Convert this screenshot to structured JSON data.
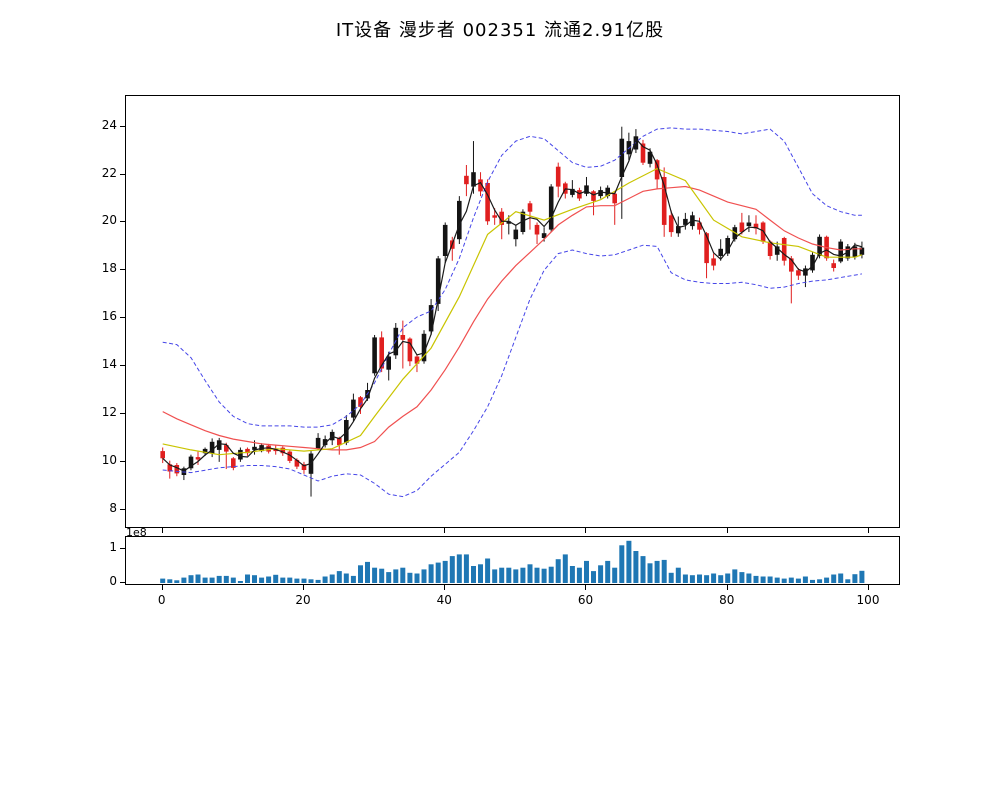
{
  "title": "IT设备 漫步者 002351 流通2.91亿股",
  "chart_data": {
    "type": "candlestick",
    "title": "IT设备 漫步者 002351 流通2.91亿股",
    "legend_position": "none",
    "grid": false,
    "price_axis": {
      "ticks": [
        8,
        10,
        12,
        14,
        16,
        18,
        20,
        22,
        24
      ],
      "min": 8,
      "max": 24.7
    },
    "x_axis": {
      "ticks": [
        0,
        20,
        40,
        60,
        80,
        100
      ],
      "min": -5.3,
      "max": 104.4
    },
    "volume_axis": {
      "ticks": [
        0,
        1
      ],
      "scale_label": "1e8",
      "max": 1.38
    },
    "colors": {
      "up_candle": "#141414",
      "down_candle": "#e01f1f",
      "ma3_black": "#1a1a1a",
      "ma10_yellow": "#c9c400",
      "ma20_red": "#f05050",
      "bollinger_blue": "#4646e8",
      "volume_bar": "#1f77b4",
      "axis": "#000000",
      "background": "#ffffff"
    },
    "ohlc": [
      [
        10.45,
        10.6,
        9.95,
        10.15
      ],
      [
        9.9,
        10.05,
        9.3,
        9.6
      ],
      [
        9.87,
        9.95,
        9.4,
        9.52
      ],
      [
        9.45,
        9.8,
        9.24,
        9.73
      ],
      [
        9.73,
        10.3,
        9.65,
        10.22
      ],
      [
        10.2,
        10.43,
        9.87,
        10.1
      ],
      [
        10.36,
        10.6,
        10.25,
        10.54
      ],
      [
        10.35,
        10.98,
        10.2,
        10.84
      ],
      [
        10.5,
        11.0,
        10.0,
        10.9
      ],
      [
        10.7,
        10.8,
        9.7,
        10.43
      ],
      [
        10.15,
        10.2,
        9.65,
        9.75
      ],
      [
        10.1,
        10.6,
        10.0,
        10.5
      ],
      [
        10.54,
        10.6,
        10.25,
        10.36
      ],
      [
        10.5,
        10.9,
        10.3,
        10.63
      ],
      [
        10.45,
        10.78,
        10.4,
        10.7
      ],
      [
        10.68,
        10.75,
        10.35,
        10.43
      ],
      [
        10.56,
        10.7,
        10.3,
        10.45
      ],
      [
        10.59,
        10.65,
        10.25,
        10.36
      ],
      [
        10.43,
        10.5,
        9.95,
        10.04
      ],
      [
        10.08,
        10.15,
        9.7,
        9.8
      ],
      [
        9.9,
        10.0,
        9.5,
        9.66
      ],
      [
        9.5,
        10.45,
        8.55,
        10.35
      ],
      [
        10.55,
        11.2,
        10.5,
        11.0
      ],
      [
        10.7,
        11.1,
        10.6,
        10.95
      ],
      [
        10.9,
        11.35,
        10.7,
        11.25
      ],
      [
        11.0,
        11.05,
        10.3,
        10.7
      ],
      [
        10.8,
        11.95,
        10.7,
        11.75
      ],
      [
        11.85,
        12.85,
        11.7,
        12.6
      ],
      [
        12.7,
        12.75,
        12.0,
        12.3
      ],
      [
        12.65,
        13.3,
        12.55,
        13.0
      ],
      [
        13.7,
        15.3,
        13.6,
        15.2
      ],
      [
        15.2,
        15.45,
        13.75,
        13.9
      ],
      [
        13.85,
        14.6,
        13.4,
        14.4
      ],
      [
        14.45,
        15.8,
        14.3,
        15.6
      ],
      [
        15.3,
        15.9,
        13.9,
        15.1
      ],
      [
        15.15,
        15.2,
        14.0,
        14.2
      ],
      [
        14.4,
        14.5,
        13.75,
        14.1
      ],
      [
        14.2,
        15.5,
        14.1,
        15.35
      ],
      [
        15.45,
        16.8,
        15.3,
        16.55
      ],
      [
        16.6,
        18.6,
        16.3,
        18.5
      ],
      [
        18.6,
        20.0,
        18.3,
        19.9
      ],
      [
        19.25,
        19.4,
        18.4,
        18.9
      ],
      [
        19.3,
        21.1,
        19.1,
        20.9
      ],
      [
        21.95,
        22.4,
        21.1,
        21.6
      ],
      [
        21.5,
        23.4,
        21.2,
        22.1
      ],
      [
        21.8,
        22.1,
        21.1,
        21.3
      ],
      [
        21.65,
        21.8,
        19.9,
        20.05
      ],
      [
        20.3,
        20.6,
        19.9,
        20.2
      ],
      [
        20.45,
        20.6,
        19.3,
        19.9
      ],
      [
        19.95,
        20.3,
        19.5,
        20.05
      ],
      [
        19.3,
        19.9,
        19.0,
        19.7
      ],
      [
        19.6,
        20.55,
        19.5,
        20.45
      ],
      [
        20.8,
        20.9,
        19.7,
        20.45
      ],
      [
        19.9,
        20.0,
        19.1,
        19.5
      ],
      [
        19.35,
        19.8,
        19.2,
        19.55
      ],
      [
        19.7,
        21.6,
        19.6,
        21.5
      ],
      [
        22.33,
        22.5,
        21.05,
        21.5
      ],
      [
        21.63,
        21.7,
        21.0,
        21.2
      ],
      [
        21.15,
        21.77,
        21.05,
        21.4
      ],
      [
        21.35,
        21.45,
        20.9,
        21.0
      ],
      [
        21.2,
        21.9,
        21.1,
        21.55
      ],
      [
        21.3,
        21.35,
        20.3,
        20.9
      ],
      [
        21.1,
        21.5,
        21.0,
        21.35
      ],
      [
        21.1,
        21.55,
        21.0,
        21.45
      ],
      [
        21.2,
        21.3,
        19.9,
        20.8
      ],
      [
        21.9,
        24.0,
        20.15,
        23.5
      ],
      [
        22.85,
        23.75,
        22.6,
        23.4
      ],
      [
        23.05,
        23.9,
        22.9,
        23.6
      ],
      [
        23.3,
        23.45,
        22.4,
        22.5
      ],
      [
        22.45,
        23.1,
        22.3,
        22.95
      ],
      [
        22.6,
        22.65,
        21.4,
        21.8
      ],
      [
        21.9,
        22.3,
        19.4,
        19.9
      ],
      [
        20.3,
        20.5,
        19.4,
        19.6
      ],
      [
        19.55,
        20.25,
        19.4,
        19.85
      ],
      [
        19.9,
        20.4,
        19.7,
        20.15
      ],
      [
        19.85,
        20.45,
        19.7,
        20.3
      ],
      [
        20.0,
        20.2,
        19.5,
        19.7
      ],
      [
        19.55,
        19.6,
        17.67,
        18.3
      ],
      [
        18.5,
        18.7,
        18.0,
        18.2
      ],
      [
        18.6,
        19.3,
        18.4,
        18.9
      ],
      [
        18.7,
        19.45,
        18.6,
        19.35
      ],
      [
        19.3,
        19.9,
        19.2,
        19.8
      ],
      [
        20.0,
        20.4,
        19.5,
        19.6
      ],
      [
        19.85,
        20.3,
        19.6,
        20.0
      ],
      [
        19.95,
        20.3,
        19.5,
        19.75
      ],
      [
        20.0,
        20.05,
        19.1,
        19.2
      ],
      [
        19.2,
        19.25,
        18.45,
        18.6
      ],
      [
        18.65,
        19.2,
        18.4,
        19.0
      ],
      [
        19.35,
        19.4,
        18.2,
        18.4
      ],
      [
        18.5,
        18.6,
        16.62,
        17.95
      ],
      [
        18.0,
        18.1,
        17.6,
        17.78
      ],
      [
        17.78,
        18.2,
        17.3,
        18.08
      ],
      [
        18.0,
        18.75,
        17.9,
        18.65
      ],
      [
        18.6,
        19.5,
        18.5,
        19.4
      ],
      [
        19.4,
        19.45,
        18.4,
        18.5
      ],
      [
        18.3,
        18.45,
        17.95,
        18.1
      ],
      [
        18.37,
        19.3,
        18.3,
        19.2
      ],
      [
        18.5,
        19.1,
        18.4,
        19.0
      ],
      [
        18.55,
        19.15,
        18.45,
        19.0
      ],
      [
        18.65,
        19.2,
        18.5,
        18.95
      ]
    ],
    "volume_1e8": [
      0.13,
      0.11,
      0.08,
      0.16,
      0.23,
      0.25,
      0.16,
      0.16,
      0.21,
      0.21,
      0.16,
      0.06,
      0.25,
      0.23,
      0.16,
      0.19,
      0.24,
      0.16,
      0.16,
      0.13,
      0.13,
      0.11,
      0.09,
      0.19,
      0.25,
      0.35,
      0.28,
      0.21,
      0.52,
      0.62,
      0.45,
      0.42,
      0.32,
      0.4,
      0.45,
      0.3,
      0.28,
      0.4,
      0.55,
      0.6,
      0.65,
      0.79,
      0.84,
      0.84,
      0.5,
      0.55,
      0.72,
      0.4,
      0.45,
      0.45,
      0.4,
      0.45,
      0.55,
      0.45,
      0.42,
      0.48,
      0.7,
      0.84,
      0.5,
      0.45,
      0.65,
      0.35,
      0.52,
      0.65,
      0.45,
      1.11,
      1.24,
      0.94,
      0.79,
      0.58,
      0.65,
      0.68,
      0.3,
      0.45,
      0.25,
      0.23,
      0.25,
      0.23,
      0.28,
      0.23,
      0.28,
      0.4,
      0.32,
      0.28,
      0.21,
      0.19,
      0.19,
      0.16,
      0.13,
      0.16,
      0.13,
      0.19,
      0.09,
      0.11,
      0.16,
      0.25,
      0.28,
      0.11,
      0.26,
      0.36
    ],
    "indicators": {
      "bollinger_upper": [
        [
          0,
          15.0
        ],
        [
          2,
          14.9
        ],
        [
          4,
          14.35
        ],
        [
          6,
          13.4
        ],
        [
          8,
          12.5
        ],
        [
          10,
          11.9
        ],
        [
          12,
          11.6
        ],
        [
          14,
          11.5
        ],
        [
          16,
          11.5
        ],
        [
          18,
          11.5
        ],
        [
          20,
          11.45
        ],
        [
          22,
          11.45
        ],
        [
          24,
          11.55
        ],
        [
          26,
          11.9
        ],
        [
          28,
          12.4
        ],
        [
          30,
          13.3
        ],
        [
          32,
          14.5
        ],
        [
          34,
          15.6
        ],
        [
          36,
          16.05
        ],
        [
          38,
          16.3
        ],
        [
          40,
          17.2
        ],
        [
          42,
          18.5
        ],
        [
          44,
          20.2
        ],
        [
          46,
          21.7
        ],
        [
          48,
          22.8
        ],
        [
          50,
          23.4
        ],
        [
          52,
          23.6
        ],
        [
          54,
          23.5
        ],
        [
          56,
          23.0
        ],
        [
          58,
          22.5
        ],
        [
          60,
          22.3
        ],
        [
          62,
          22.35
        ],
        [
          64,
          22.6
        ],
        [
          66,
          23.1
        ],
        [
          68,
          23.6
        ],
        [
          70,
          23.9
        ],
        [
          72,
          23.95
        ],
        [
          74,
          23.9
        ],
        [
          76,
          23.9
        ],
        [
          78,
          23.85
        ],
        [
          80,
          23.8
        ],
        [
          82,
          23.7
        ],
        [
          84,
          23.8
        ],
        [
          86,
          23.9
        ],
        [
          88,
          23.4
        ],
        [
          90,
          22.3
        ],
        [
          92,
          21.2
        ],
        [
          94,
          20.7
        ],
        [
          96,
          20.45
        ],
        [
          98,
          20.3
        ],
        [
          99,
          20.3
        ]
      ],
      "bollinger_lower": [
        [
          0,
          9.66
        ],
        [
          2,
          9.6
        ],
        [
          4,
          9.55
        ],
        [
          6,
          9.65
        ],
        [
          8,
          9.75
        ],
        [
          10,
          9.8
        ],
        [
          12,
          9.85
        ],
        [
          14,
          9.85
        ],
        [
          16,
          9.8
        ],
        [
          18,
          9.7
        ],
        [
          20,
          9.45
        ],
        [
          22,
          9.2
        ],
        [
          24,
          9.4
        ],
        [
          26,
          9.5
        ],
        [
          28,
          9.45
        ],
        [
          30,
          9.1
        ],
        [
          32,
          8.65
        ],
        [
          34,
          8.55
        ],
        [
          36,
          8.8
        ],
        [
          38,
          9.4
        ],
        [
          40,
          9.9
        ],
        [
          42,
          10.4
        ],
        [
          44,
          11.3
        ],
        [
          46,
          12.3
        ],
        [
          48,
          13.6
        ],
        [
          50,
          15.2
        ],
        [
          52,
          16.8
        ],
        [
          54,
          18.0
        ],
        [
          56,
          18.7
        ],
        [
          58,
          18.85
        ],
        [
          60,
          18.7
        ],
        [
          62,
          18.6
        ],
        [
          64,
          18.65
        ],
        [
          66,
          18.85
        ],
        [
          68,
          19.05
        ],
        [
          70,
          19.0
        ],
        [
          72,
          17.9
        ],
        [
          74,
          17.6
        ],
        [
          76,
          17.5
        ],
        [
          78,
          17.45
        ],
        [
          80,
          17.45
        ],
        [
          82,
          17.5
        ],
        [
          84,
          17.4
        ],
        [
          86,
          17.25
        ],
        [
          88,
          17.3
        ],
        [
          90,
          17.45
        ],
        [
          92,
          17.55
        ],
        [
          94,
          17.6
        ],
        [
          96,
          17.7
        ],
        [
          98,
          17.8
        ],
        [
          99,
          17.85
        ]
      ],
      "ma20_red": [
        [
          0,
          12.1
        ],
        [
          2,
          11.8
        ],
        [
          4,
          11.55
        ],
        [
          6,
          11.3
        ],
        [
          8,
          11.1
        ],
        [
          10,
          10.95
        ],
        [
          12,
          10.85
        ],
        [
          14,
          10.75
        ],
        [
          16,
          10.7
        ],
        [
          18,
          10.65
        ],
        [
          20,
          10.6
        ],
        [
          22,
          10.55
        ],
        [
          24,
          10.5
        ],
        [
          26,
          10.5
        ],
        [
          28,
          10.6
        ],
        [
          30,
          10.85
        ],
        [
          32,
          11.45
        ],
        [
          34,
          11.9
        ],
        [
          36,
          12.3
        ],
        [
          38,
          13.0
        ],
        [
          40,
          13.85
        ],
        [
          42,
          14.8
        ],
        [
          44,
          15.85
        ],
        [
          46,
          16.8
        ],
        [
          48,
          17.55
        ],
        [
          50,
          18.2
        ],
        [
          52,
          18.75
        ],
        [
          54,
          19.3
        ],
        [
          56,
          19.9
        ],
        [
          58,
          20.3
        ],
        [
          60,
          20.65
        ],
        [
          62,
          20.7
        ],
        [
          64,
          20.7
        ],
        [
          66,
          21.0
        ],
        [
          68,
          21.3
        ],
        [
          70,
          21.4
        ],
        [
          72,
          21.45
        ],
        [
          74,
          21.5
        ],
        [
          76,
          21.35
        ],
        [
          78,
          21.1
        ],
        [
          80,
          20.85
        ],
        [
          82,
          20.7
        ],
        [
          84,
          20.55
        ],
        [
          86,
          20.1
        ],
        [
          88,
          19.65
        ],
        [
          90,
          19.35
        ],
        [
          92,
          19.1
        ],
        [
          94,
          18.95
        ],
        [
          96,
          18.85
        ],
        [
          98,
          18.9
        ],
        [
          99,
          18.9
        ]
      ],
      "ma10_yellow": [
        [
          0,
          10.75
        ],
        [
          4,
          10.5
        ],
        [
          8,
          10.3
        ],
        [
          12,
          10.4
        ],
        [
          16,
          10.55
        ],
        [
          20,
          10.45
        ],
        [
          24,
          10.55
        ],
        [
          28,
          11.1
        ],
        [
          30,
          11.9
        ],
        [
          34,
          13.45
        ],
        [
          38,
          14.75
        ],
        [
          42,
          16.9
        ],
        [
          46,
          19.5
        ],
        [
          50,
          20.45
        ],
        [
          54,
          20.1
        ],
        [
          58,
          20.55
        ],
        [
          62,
          20.95
        ],
        [
          66,
          21.65
        ],
        [
          70,
          22.25
        ],
        [
          74,
          21.75
        ],
        [
          78,
          20.1
        ],
        [
          82,
          19.4
        ],
        [
          86,
          19.15
        ],
        [
          90,
          19.0
        ],
        [
          94,
          18.55
        ],
        [
          98,
          18.55
        ],
        [
          99,
          18.65
        ]
      ],
      "ma_fast": "ma3_of_close"
    }
  }
}
